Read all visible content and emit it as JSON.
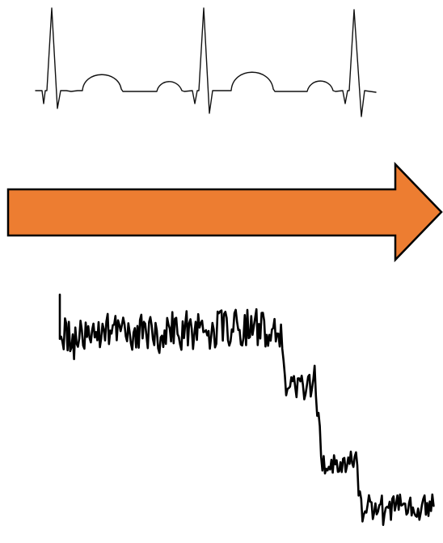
{
  "diagram": {
    "top_signal": {
      "kind": "ecg-trace",
      "stroke": "#111111"
    },
    "arrow": {
      "direction": "right",
      "fill": "#ED7D31",
      "stroke": "#000000"
    },
    "bottom_signal": {
      "kind": "noisy-step-trace",
      "stroke": "#000000"
    }
  }
}
